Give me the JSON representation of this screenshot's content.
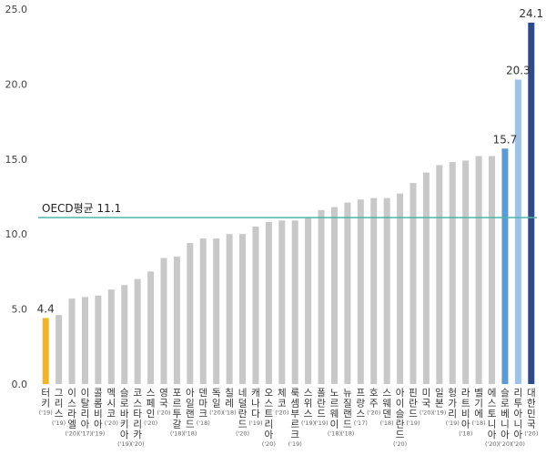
{
  "chart_data": {
    "type": "bar",
    "categories": [
      {
        "name": "터키",
        "year": "('19)"
      },
      {
        "name": "그리스",
        "year": "('19)"
      },
      {
        "name": "이스라엘",
        "year": "('20)"
      },
      {
        "name": "이탈리아",
        "year": "('17)"
      },
      {
        "name": "콜롬비아",
        "year": "('19)"
      },
      {
        "name": "멕시코",
        "year": "('20)"
      },
      {
        "name": "슬로바키아",
        "year": "('19)"
      },
      {
        "name": "코스타리카",
        "year": "('20)"
      },
      {
        "name": "스페인",
        "year": "('20)"
      },
      {
        "name": "영국",
        "year": "('20)"
      },
      {
        "name": "포르투갈",
        "year": "('18)"
      },
      {
        "name": "아일랜드",
        "year": "('18)"
      },
      {
        "name": "덴마크",
        "year": "('18)"
      },
      {
        "name": "독일",
        "year": "('20)"
      },
      {
        "name": "칠레",
        "year": "('18)"
      },
      {
        "name": "네덜란드",
        "year": "('20)"
      },
      {
        "name": "캐나다",
        "year": "('19)"
      },
      {
        "name": "오스트리아",
        "year": "('20)"
      },
      {
        "name": "체코",
        "year": "('20)"
      },
      {
        "name": "룩셈부르크",
        "year": "('19)"
      },
      {
        "name": "스위스",
        "year": "('19)"
      },
      {
        "name": "폴란드",
        "year": "('19)"
      },
      {
        "name": "노르웨이",
        "year": "('18)"
      },
      {
        "name": "뉴질랜드",
        "year": "('18)"
      },
      {
        "name": "프랑스",
        "year": "('17)"
      },
      {
        "name": "호주",
        "year": "('20)"
      },
      {
        "name": "스웨덴",
        "year": "('18)"
      },
      {
        "name": "아이슬란드",
        "year": "('20)"
      },
      {
        "name": "핀란드",
        "year": "('19)"
      },
      {
        "name": "미국",
        "year": "('20)"
      },
      {
        "name": "일본",
        "year": "('19)"
      },
      {
        "name": "헝가리",
        "year": "('19)"
      },
      {
        "name": "라트비아",
        "year": "('18)"
      },
      {
        "name": "벨기에",
        "year": "('18)"
      },
      {
        "name": "에스토니아",
        "year": "('20)"
      },
      {
        "name": "슬로베니아",
        "year": "('20)"
      },
      {
        "name": "리투아니아",
        "year": "('20)"
      },
      {
        "name": "대한민국",
        "year": "('20)"
      }
    ],
    "values": [
      4.4,
      4.6,
      5.7,
      5.8,
      5.9,
      6.3,
      6.6,
      7.0,
      7.5,
      8.4,
      8.5,
      9.4,
      9.7,
      9.7,
      10.0,
      10.0,
      10.5,
      10.8,
      10.9,
      10.9,
      11.1,
      11.6,
      11.8,
      12.1,
      12.3,
      12.4,
      12.4,
      12.7,
      13.4,
      14.1,
      14.6,
      14.8,
      14.9,
      15.2,
      15.2,
      15.7,
      20.3,
      24.1
    ],
    "value_labels": {
      "0": "4.4",
      "35": "15.7",
      "36": "20.3",
      "37": "24.1"
    },
    "ylim": [
      0,
      25
    ],
    "yticks": [
      "0.0",
      "5.0",
      "10.0",
      "15.0",
      "20.0",
      "25.0"
    ],
    "grid": false,
    "reference_line": {
      "label": "OECD평균 11.1",
      "value": 11.1,
      "color": "#4db6a9"
    },
    "colors": {
      "default": "#c8c8c8",
      "turkey": "#f5b324",
      "slovenia": "#5b9bd5",
      "lithuania": "#9dc3e6",
      "korea": "#2f4a8a"
    },
    "highlight": {
      "0": "turkey",
      "35": "slovenia",
      "36": "lithuania",
      "37": "korea"
    }
  }
}
